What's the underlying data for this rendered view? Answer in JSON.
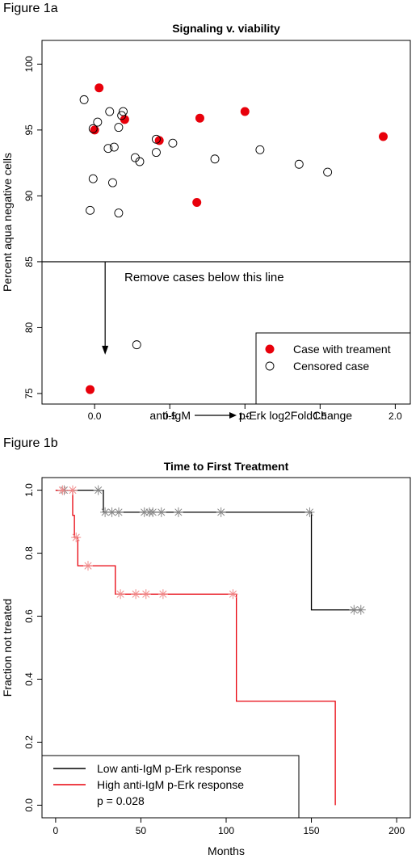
{
  "figure_a_label": "Figure 1a",
  "figure_b_label": "Figure 1b",
  "chart_data": [
    {
      "type": "scatter",
      "title": "Signaling v. viability",
      "xlabel_left": "anti-IgM",
      "xlabel_right": "p-Erk log2FoldChange",
      "ylabel": "Percent aqua negative cells",
      "xlim": [
        -0.35,
        2.1
      ],
      "ylim": [
        74.2,
        101.8
      ],
      "xticks": [
        0.0,
        0.5,
        1.0,
        1.5,
        2.0
      ],
      "xtick_labels": [
        "0.0",
        "0.5",
        "1.0",
        "1.5",
        "2.0"
      ],
      "yticks": [
        75,
        80,
        85,
        90,
        95,
        100
      ],
      "ytick_labels": [
        "75",
        "80",
        "85",
        "90",
        "95",
        "100"
      ],
      "threshold_y": 85,
      "annotation": "Remove cases below this line",
      "legend_position": "bottom-right",
      "series": [
        {
          "name": "Case with treament",
          "marker": "filled-circle",
          "color": "#e8000b",
          "points": [
            [
              0.03,
              98.2
            ],
            [
              0.0,
              95.0
            ],
            [
              0.2,
              95.8
            ],
            [
              0.43,
              94.2
            ],
            [
              0.7,
              95.9
            ],
            [
              1.0,
              96.4
            ],
            [
              1.92,
              94.5
            ],
            [
              0.68,
              89.5
            ],
            [
              -0.03,
              75.3
            ]
          ]
        },
        {
          "name": "Censored case",
          "marker": "open-circle",
          "color": "#000000",
          "points": [
            [
              -0.07,
              97.3
            ],
            [
              0.02,
              95.6
            ],
            [
              -0.01,
              95.1
            ],
            [
              0.1,
              96.4
            ],
            [
              0.18,
              96.1
            ],
            [
              0.19,
              96.4
            ],
            [
              0.16,
              95.2
            ],
            [
              0.09,
              93.6
            ],
            [
              0.13,
              93.7
            ],
            [
              0.27,
              92.9
            ],
            [
              0.3,
              92.6
            ],
            [
              0.41,
              94.3
            ],
            [
              0.41,
              93.3
            ],
            [
              0.52,
              94.0
            ],
            [
              0.8,
              92.8
            ],
            [
              1.1,
              93.5
            ],
            [
              1.36,
              92.4
            ],
            [
              1.55,
              91.8
            ],
            [
              -0.01,
              91.3
            ],
            [
              0.12,
              91.0
            ],
            [
              -0.03,
              88.9
            ],
            [
              0.16,
              88.7
            ],
            [
              0.28,
              78.7
            ]
          ]
        }
      ]
    },
    {
      "type": "line",
      "subtype": "step",
      "title": "Time to First Treatment",
      "xlabel": "Months",
      "ylabel": "Fraction not treated",
      "xlim": [
        -8,
        208
      ],
      "ylim": [
        -0.04,
        1.04
      ],
      "xticks": [
        0,
        50,
        100,
        150,
        200
      ],
      "xtick_labels": [
        "0",
        "50",
        "100",
        "150",
        "200"
      ],
      "yticks": [
        0.0,
        0.2,
        0.4,
        0.6,
        0.8,
        1.0
      ],
      "ytick_labels": [
        "0.0",
        "0.2",
        "0.4",
        "0.6",
        "0.8",
        "1.0"
      ],
      "legend_position": "bottom-left",
      "p_value_text": "p = 0.028",
      "series": [
        {
          "name": "Low anti-IgM p-Erk response",
          "color": "#000000",
          "censor_color": "#888888",
          "steps": [
            [
              0,
              1.0
            ],
            [
              28,
              0.93
            ],
            [
              150,
              0.62
            ],
            [
              179,
              0.62
            ]
          ],
          "censored": [
            [
              5,
              1.0
            ],
            [
              25,
              1.0
            ],
            [
              29,
              0.93
            ],
            [
              33,
              0.93
            ],
            [
              37,
              0.93
            ],
            [
              52,
              0.93
            ],
            [
              55,
              0.93
            ],
            [
              57,
              0.93
            ],
            [
              62,
              0.93
            ],
            [
              72,
              0.93
            ],
            [
              97,
              0.93
            ],
            [
              149,
              0.93
            ],
            [
              175,
              0.62
            ],
            [
              179,
              0.62
            ]
          ]
        },
        {
          "name": "High anti-IgM p-Erk response",
          "color": "#e8000b",
          "censor_color": "#f08a8a",
          "steps": [
            [
              0,
              1.0
            ],
            [
              10,
              0.92
            ],
            [
              11,
              0.85
            ],
            [
              13,
              0.76
            ],
            [
              35,
              0.67
            ],
            [
              106,
              0.33
            ],
            [
              164,
              0.0
            ]
          ],
          "censored": [
            [
              4,
              1.0
            ],
            [
              10,
              1.0
            ],
            [
              12,
              0.85
            ],
            [
              19,
              0.76
            ],
            [
              38,
              0.67
            ],
            [
              47,
              0.67
            ],
            [
              53,
              0.67
            ],
            [
              63,
              0.67
            ],
            [
              104,
              0.67
            ]
          ]
        }
      ]
    }
  ]
}
